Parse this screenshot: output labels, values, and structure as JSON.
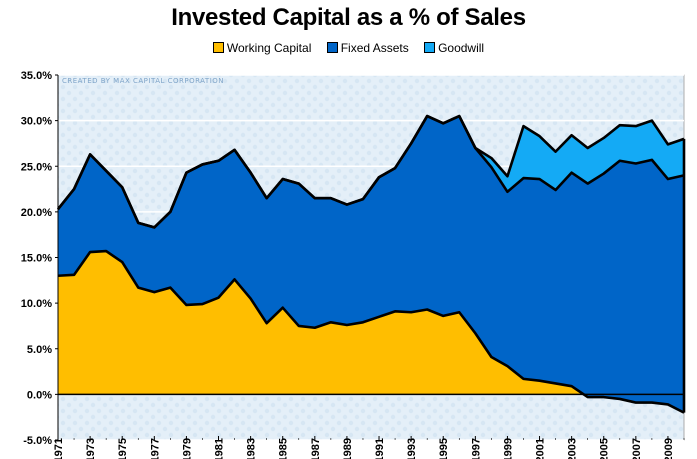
{
  "chart_data": {
    "type": "area",
    "title": "Invested Capital as a % of Sales",
    "watermark": "CREATED BY MAX CAPITAL CORPORATION",
    "legend_position": "top-center",
    "stacked": true,
    "ylim": [
      -0.05,
      0.35
    ],
    "y_ticks": [
      "35.0%",
      "30.0%",
      "25.0%",
      "20.0%",
      "15.0%",
      "10.0%",
      "5.0%",
      "0.0%",
      "-5.0%"
    ],
    "y_tick_values": [
      0.35,
      0.3,
      0.25,
      0.2,
      0.15,
      0.1,
      0.05,
      0.0,
      -0.05
    ],
    "x": [
      1971,
      1972,
      1973,
      1974,
      1975,
      1976,
      1977,
      1978,
      1979,
      1980,
      1981,
      1982,
      1983,
      1984,
      1985,
      1986,
      1987,
      1988,
      1989,
      1990,
      1991,
      1992,
      1993,
      1994,
      1995,
      1996,
      1997,
      1998,
      1999,
      2000,
      2001,
      2002,
      2003,
      2004,
      2005,
      2006,
      2007,
      2008,
      2009,
      2010
    ],
    "x_tick_labels": [
      "1971",
      "1973",
      "1975",
      "1977",
      "1979",
      "1981",
      "1983",
      "1985",
      "1987",
      "1989",
      "1991",
      "1993",
      "1995",
      "1997",
      "1999",
      "2001",
      "2003",
      "2005",
      "2007",
      "2009"
    ],
    "grid": true,
    "series": [
      {
        "name": "Working Capital",
        "color": "#FFBE00",
        "values": [
          0.13,
          0.131,
          0.156,
          0.157,
          0.145,
          0.117,
          0.112,
          0.117,
          0.098,
          0.099,
          0.106,
          0.126,
          0.105,
          0.078,
          0.095,
          0.075,
          0.073,
          0.079,
          0.076,
          0.079,
          0.085,
          0.091,
          0.09,
          0.093,
          0.086,
          0.09,
          0.067,
          0.041,
          0.031,
          0.017,
          0.015,
          0.012,
          0.009,
          -0.003,
          -0.003,
          -0.005,
          -0.009,
          -0.009,
          -0.011,
          -0.02
        ]
      },
      {
        "name": "Fixed Assets",
        "color": "#0065C8",
        "values": [
          0.073,
          0.094,
          0.107,
          0.088,
          0.082,
          0.071,
          0.071,
          0.083,
          0.145,
          0.153,
          0.15,
          0.142,
          0.138,
          0.137,
          0.141,
          0.156,
          0.142,
          0.136,
          0.132,
          0.135,
          0.153,
          0.157,
          0.185,
          0.212,
          0.211,
          0.215,
          0.203,
          0.208,
          0.191,
          0.22,
          0.221,
          0.212,
          0.234,
          0.234,
          0.245,
          0.261,
          0.262,
          0.266,
          0.247,
          0.26
        ]
      },
      {
        "name": "Goodwill",
        "color": "#14AAF5",
        "values": [
          0,
          0,
          0,
          0,
          0,
          0,
          0,
          0,
          0,
          0,
          0,
          0,
          0,
          0,
          0,
          0,
          0,
          0,
          0,
          0,
          0,
          0,
          0,
          0,
          0,
          0,
          0,
          0.01,
          0.017,
          0.057,
          0.047,
          0.042,
          0.041,
          0.039,
          0.039,
          0.039,
          0.041,
          0.043,
          0.038,
          0.04
        ]
      }
    ]
  }
}
